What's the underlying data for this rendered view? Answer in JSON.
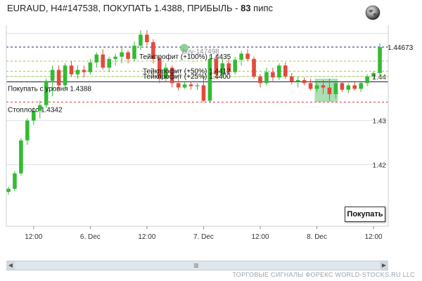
{
  "title": {
    "prefix": "EURAUD, H4#147538, ПОКУПАТЬ 1.4388, ПРИБЫЛЬ - ",
    "profit": "83",
    "suffix": " пипс"
  },
  "buy_button_label": "Покупать",
  "footer_text": "ТОРГОВЫЕ СИГНАЛЫ ФОРЕКС WORLD-STOCKS.RU LLC",
  "icons": {
    "globe": "globe-icon",
    "scroll_left": "arrow-left-icon",
    "scroll_right": "arrow-right-icon",
    "scroll_thumb": "grip-icon"
  },
  "colors": {
    "bull": "#33bb33",
    "bear": "#e34a3c",
    "entry_line": "#1a1a66",
    "current_price_line": "#22227a",
    "stoploss_line": "#dd3333",
    "takeprofit_line": "#99cc33",
    "highlight_box": "#8fd49a"
  },
  "chart_data": {
    "type": "candlestick",
    "symbol": "EURAUD",
    "timeframe": "H4",
    "ylim": [
      1.406,
      1.451
    ],
    "y_ticks": [
      1.42,
      1.43,
      1.44
    ],
    "y_tick_labels": [
      "1.42",
      "1.43",
      "1.44"
    ],
    "x_ticks": [
      {
        "label": "12:00",
        "bar": 4
      },
      {
        "label": "6. Dec",
        "bar": 13
      },
      {
        "label": "12:00",
        "bar": 22
      },
      {
        "label": "7. Dec",
        "bar": 31
      },
      {
        "label": "12:00",
        "bar": 40
      },
      {
        "label": "8. Dec",
        "bar": 49
      },
      {
        "label": "12:00",
        "bar": 58
      }
    ],
    "levels": [
      {
        "name": "current-price",
        "label": "1.44673",
        "price": 1.4467,
        "style": "dashed",
        "color": "#22227a"
      },
      {
        "name": "takeprofit-100",
        "label": "Тейкпрофит (+100%) 1.4435",
        "price": 1.4435,
        "style": "dashed",
        "color": "#99cc33"
      },
      {
        "name": "takeprofit-50",
        "label": "Тейкпрофит (+50%) 1.4412",
        "price": 1.4412,
        "style": "dashed",
        "color": "#99cc33"
      },
      {
        "name": "takeprofit-25",
        "label": "Тейкпрофит (+25%) 1.4400",
        "price": 1.44,
        "style": "dashed",
        "color": "#99cc33"
      },
      {
        "name": "entry-level",
        "label": "Покупать с уровня 1.4388",
        "price": 1.4388,
        "style": "solid",
        "color": "#1a1a66"
      },
      {
        "name": "stoploss",
        "label": "Стоплосс 1.4342",
        "price": 1.4342,
        "style": "dashed",
        "color": "#dd3333"
      }
    ],
    "current_price_label": "1.44673",
    "signal_marker": {
      "label": "buy-147498",
      "bar": 29,
      "price": 1.4468
    },
    "highlight_region": {
      "bar_start": 49,
      "bar_end": 52,
      "price_low": 1.4342,
      "price_high": 1.4395
    },
    "ohlc": [
      {
        "o": 1.4138,
        "h": 1.415,
        "l": 1.4132,
        "c": 1.4145
      },
      {
        "o": 1.4145,
        "h": 1.4185,
        "l": 1.414,
        "c": 1.418
      },
      {
        "o": 1.418,
        "h": 1.426,
        "l": 1.4175,
        "c": 1.4255
      },
      {
        "o": 1.4255,
        "h": 1.4305,
        "l": 1.4245,
        "c": 1.43
      },
      {
        "o": 1.43,
        "h": 1.433,
        "l": 1.429,
        "c": 1.4322
      },
      {
        "o": 1.4322,
        "h": 1.4345,
        "l": 1.4305,
        "c": 1.4335
      },
      {
        "o": 1.4335,
        "h": 1.4395,
        "l": 1.4328,
        "c": 1.439
      },
      {
        "o": 1.439,
        "h": 1.4425,
        "l": 1.4355,
        "c": 1.4415
      },
      {
        "o": 1.4415,
        "h": 1.4425,
        "l": 1.4372,
        "c": 1.438
      },
      {
        "o": 1.438,
        "h": 1.443,
        "l": 1.4375,
        "c": 1.4425
      },
      {
        "o": 1.4425,
        "h": 1.4435,
        "l": 1.44,
        "c": 1.4405
      },
      {
        "o": 1.4405,
        "h": 1.4425,
        "l": 1.4395,
        "c": 1.4415
      },
      {
        "o": 1.4415,
        "h": 1.4425,
        "l": 1.4398,
        "c": 1.441
      },
      {
        "o": 1.441,
        "h": 1.444,
        "l": 1.4405,
        "c": 1.4432
      },
      {
        "o": 1.4432,
        "h": 1.4455,
        "l": 1.442,
        "c": 1.445
      },
      {
        "o": 1.445,
        "h": 1.4462,
        "l": 1.4415,
        "c": 1.442
      },
      {
        "o": 1.442,
        "h": 1.4445,
        "l": 1.441,
        "c": 1.444
      },
      {
        "o": 1.444,
        "h": 1.4452,
        "l": 1.4425,
        "c": 1.4445
      },
      {
        "o": 1.4445,
        "h": 1.447,
        "l": 1.443,
        "c": 1.4455
      },
      {
        "o": 1.4455,
        "h": 1.446,
        "l": 1.443,
        "c": 1.444
      },
      {
        "o": 1.444,
        "h": 1.448,
        "l": 1.4435,
        "c": 1.447
      },
      {
        "o": 1.447,
        "h": 1.4505,
        "l": 1.446,
        "c": 1.4495
      },
      {
        "o": 1.4495,
        "h": 1.4505,
        "l": 1.447,
        "c": 1.4478
      },
      {
        "o": 1.4478,
        "h": 1.4485,
        "l": 1.443,
        "c": 1.444
      },
      {
        "o": 1.444,
        "h": 1.4445,
        "l": 1.4385,
        "c": 1.4395
      },
      {
        "o": 1.4395,
        "h": 1.443,
        "l": 1.4388,
        "c": 1.442
      },
      {
        "o": 1.442,
        "h": 1.4425,
        "l": 1.4375,
        "c": 1.4385
      },
      {
        "o": 1.4385,
        "h": 1.4395,
        "l": 1.4368,
        "c": 1.4375
      },
      {
        "o": 1.4375,
        "h": 1.439,
        "l": 1.4372,
        "c": 1.4382
      },
      {
        "o": 1.4382,
        "h": 1.4388,
        "l": 1.437,
        "c": 1.4378
      },
      {
        "o": 1.4378,
        "h": 1.4385,
        "l": 1.437,
        "c": 1.438
      },
      {
        "o": 1.438,
        "h": 1.44,
        "l": 1.4342,
        "c": 1.4345
      },
      {
        "o": 1.4345,
        "h": 1.445,
        "l": 1.434,
        "c": 1.444
      },
      {
        "o": 1.444,
        "h": 1.445,
        "l": 1.4395,
        "c": 1.4405
      },
      {
        "o": 1.4405,
        "h": 1.444,
        "l": 1.44,
        "c": 1.443
      },
      {
        "o": 1.443,
        "h": 1.444,
        "l": 1.4405,
        "c": 1.441
      },
      {
        "o": 1.441,
        "h": 1.4445,
        "l": 1.4405,
        "c": 1.4438
      },
      {
        "o": 1.4438,
        "h": 1.4458,
        "l": 1.4425,
        "c": 1.4452
      },
      {
        "o": 1.4452,
        "h": 1.4462,
        "l": 1.4435,
        "c": 1.444
      },
      {
        "o": 1.444,
        "h": 1.4445,
        "l": 1.4395,
        "c": 1.44
      },
      {
        "o": 1.44,
        "h": 1.4405,
        "l": 1.4375,
        "c": 1.4385
      },
      {
        "o": 1.4385,
        "h": 1.442,
        "l": 1.438,
        "c": 1.441
      },
      {
        "o": 1.441,
        "h": 1.442,
        "l": 1.439,
        "c": 1.4398
      },
      {
        "o": 1.4398,
        "h": 1.443,
        "l": 1.4392,
        "c": 1.4425
      },
      {
        "o": 1.4425,
        "h": 1.4432,
        "l": 1.4395,
        "c": 1.44
      },
      {
        "o": 1.44,
        "h": 1.4408,
        "l": 1.4382,
        "c": 1.4388
      },
      {
        "o": 1.4388,
        "h": 1.44,
        "l": 1.4375,
        "c": 1.4392
      },
      {
        "o": 1.4392,
        "h": 1.4398,
        "l": 1.438,
        "c": 1.4385
      },
      {
        "o": 1.4385,
        "h": 1.4395,
        "l": 1.4368,
        "c": 1.4372
      },
      {
        "o": 1.4372,
        "h": 1.439,
        "l": 1.4365,
        "c": 1.438
      },
      {
        "o": 1.438,
        "h": 1.4392,
        "l": 1.436,
        "c": 1.4375
      },
      {
        "o": 1.4375,
        "h": 1.4395,
        "l": 1.4345,
        "c": 1.436
      },
      {
        "o": 1.436,
        "h": 1.439,
        "l": 1.435,
        "c": 1.4385
      },
      {
        "o": 1.4385,
        "h": 1.4388,
        "l": 1.4365,
        "c": 1.437
      },
      {
        "o": 1.437,
        "h": 1.4385,
        "l": 1.4362,
        "c": 1.438
      },
      {
        "o": 1.438,
        "h": 1.439,
        "l": 1.4368,
        "c": 1.4372
      },
      {
        "o": 1.4372,
        "h": 1.439,
        "l": 1.4365,
        "c": 1.4385
      },
      {
        "o": 1.4385,
        "h": 1.4405,
        "l": 1.4378,
        "c": 1.44
      },
      {
        "o": 1.44,
        "h": 1.4412,
        "l": 1.4392,
        "c": 1.4408
      },
      {
        "o": 1.4408,
        "h": 1.4475,
        "l": 1.44,
        "c": 1.4467
      }
    ]
  }
}
